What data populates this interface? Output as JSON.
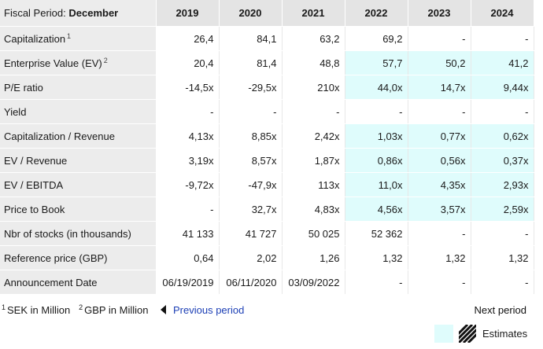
{
  "header": {
    "fiscal_label": "Fiscal Period:",
    "fiscal_value": "December",
    "years": [
      "2019",
      "2020",
      "2021",
      "2022",
      "2023",
      "2024"
    ]
  },
  "rows": [
    {
      "label": "Capitalization",
      "note": "1",
      "values": [
        "26,4",
        "84,1",
        "63,2",
        "69,2",
        "-",
        "-"
      ],
      "est": [
        false,
        false,
        false,
        false,
        false,
        false
      ]
    },
    {
      "label": "Enterprise Value (EV)",
      "note": "2",
      "values": [
        "20,4",
        "81,4",
        "48,8",
        "57,7",
        "50,2",
        "41,2"
      ],
      "est": [
        false,
        false,
        false,
        true,
        true,
        true
      ]
    },
    {
      "label": "P/E ratio",
      "note": "",
      "values": [
        "-14,5x",
        "-29,5x",
        "210x",
        "44,0x",
        "14,7x",
        "9,44x"
      ],
      "est": [
        false,
        false,
        false,
        true,
        true,
        true
      ]
    },
    {
      "label": "Yield",
      "note": "",
      "values": [
        "-",
        "-",
        "-",
        "-",
        "-",
        "-"
      ],
      "est": [
        false,
        false,
        false,
        false,
        false,
        false
      ]
    },
    {
      "label": "Capitalization / Revenue",
      "note": "",
      "values": [
        "4,13x",
        "8,85x",
        "2,42x",
        "1,03x",
        "0,77x",
        "0,62x"
      ],
      "est": [
        false,
        false,
        false,
        true,
        true,
        true
      ]
    },
    {
      "label": "EV / Revenue",
      "note": "",
      "values": [
        "3,19x",
        "8,57x",
        "1,87x",
        "0,86x",
        "0,56x",
        "0,37x"
      ],
      "est": [
        false,
        false,
        false,
        true,
        true,
        true
      ]
    },
    {
      "label": "EV / EBITDA",
      "note": "",
      "values": [
        "-9,72x",
        "-47,9x",
        "113x",
        "11,0x",
        "4,35x",
        "2,93x"
      ],
      "est": [
        false,
        false,
        false,
        true,
        true,
        true
      ]
    },
    {
      "label": "Price to Book",
      "note": "",
      "values": [
        "-",
        "32,7x",
        "4,83x",
        "4,56x",
        "3,57x",
        "2,59x"
      ],
      "est": [
        false,
        false,
        false,
        true,
        true,
        true
      ]
    },
    {
      "label": "Nbr of stocks (in thousands)",
      "note": "",
      "values": [
        "41 133",
        "41 727",
        "50 025",
        "52 362",
        "-",
        "-"
      ],
      "est": [
        false,
        false,
        false,
        false,
        false,
        false
      ]
    },
    {
      "label": "Reference price (GBP)",
      "note": "",
      "values": [
        "0,64",
        "2,02",
        "1,26",
        "1,32",
        "1,32",
        "1,32"
      ],
      "est": [
        false,
        false,
        false,
        false,
        false,
        false
      ]
    },
    {
      "label": "Announcement Date",
      "note": "",
      "values": [
        "06/19/2019",
        "06/11/2020",
        "03/09/2022",
        "-",
        "-",
        "-"
      ],
      "est": [
        false,
        false,
        false,
        false,
        false,
        false
      ]
    }
  ],
  "footnotes": {
    "n1_mark": "1",
    "n1_text": "SEK in Million",
    "n2_mark": "2",
    "n2_text": "GBP in Million"
  },
  "nav": {
    "prev_label": "Previous period",
    "next_label": "Next period"
  },
  "legend": {
    "estimates_label": "Estimates",
    "estimate_color": "#dffcfc"
  }
}
